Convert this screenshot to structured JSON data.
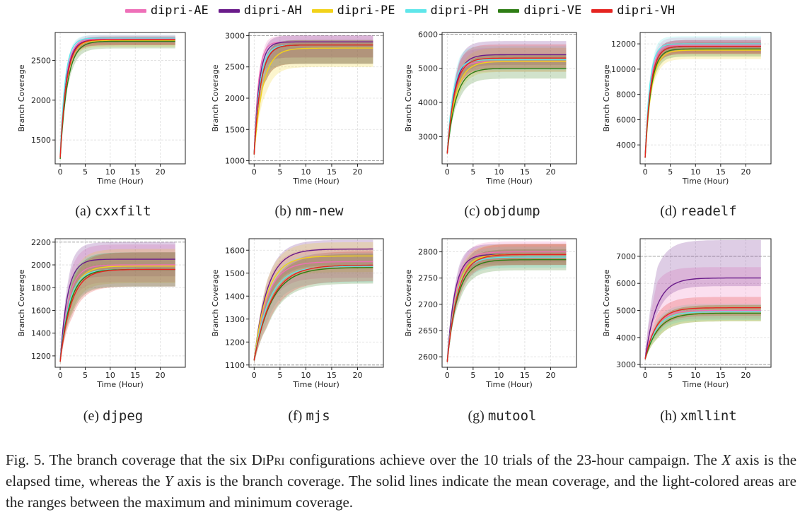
{
  "legend": [
    {
      "label": "dipri-AE",
      "color": "#ee6fb8"
    },
    {
      "label": "dipri-AH",
      "color": "#6a1b8a"
    },
    {
      "label": "dipri-PE",
      "color": "#f2d21a"
    },
    {
      "label": "dipri-PH",
      "color": "#5fe6ea"
    },
    {
      "label": "dipri-VE",
      "color": "#2e7d14"
    },
    {
      "label": "dipri-VH",
      "color": "#e52420"
    }
  ],
  "axis_labels": {
    "x": "Time (Hour)",
    "y": "Branch Coverage"
  },
  "caption": {
    "fig": "Fig. 5.",
    "text1": "The branch coverage that the six",
    "name": "DiPri",
    "text2": "configurations achieve over the 10 trials of the 23-hour campaign. The",
    "x_var": "X",
    "text3": "axis is the elapsed time, whereas the",
    "y_var": "Y",
    "text4": "axis is the branch coverage. The solid lines indicate the mean coverage, and the light-colored areas are the ranges between the maximum and minimum coverage."
  },
  "chart_data": [
    {
      "type": "line",
      "subcaption": "(a)",
      "program": "cxxfilt",
      "xlabel": "Time (Hour)",
      "ylabel": "Branch Coverage",
      "xlim": [
        -1,
        25
      ],
      "ylim": [
        1200,
        2850
      ],
      "xticks": [
        0,
        5,
        10,
        15,
        20
      ],
      "yticks": [
        1500,
        2000,
        2500
      ],
      "hlines": [],
      "series": [
        {
          "name": "dipri-AE",
          "start": 1300,
          "end": 2770,
          "k": 0.9,
          "band_lo": 60,
          "band_hi": 50
        },
        {
          "name": "dipri-AH",
          "start": 1280,
          "end": 2760,
          "k": 0.85,
          "band_lo": 70,
          "band_hi": 40
        },
        {
          "name": "dipri-PE",
          "start": 1290,
          "end": 2750,
          "k": 0.8,
          "band_lo": 80,
          "band_hi": 40
        },
        {
          "name": "dipri-PH",
          "start": 1310,
          "end": 2780,
          "k": 1.0,
          "band_lo": 60,
          "band_hi": 40
        },
        {
          "name": "dipri-VE",
          "start": 1260,
          "end": 2740,
          "k": 0.7,
          "band_lo": 90,
          "band_hi": 40
        },
        {
          "name": "dipri-VH",
          "start": 1280,
          "end": 2760,
          "k": 0.8,
          "band_lo": 70,
          "band_hi": 40
        }
      ]
    },
    {
      "type": "line",
      "subcaption": "(b)",
      "program": "nm-new",
      "xlabel": "Time (Hour)",
      "ylabel": "Branch Coverage",
      "xlim": [
        -1,
        25
      ],
      "ylim": [
        950,
        3050
      ],
      "xticks": [
        0,
        5,
        10,
        15,
        20
      ],
      "yticks": [
        1000,
        1500,
        2000,
        2500,
        3000
      ],
      "hlines": [
        1000,
        3000
      ],
      "series": [
        {
          "name": "dipri-AE",
          "start": 1100,
          "end": 2900,
          "k": 1.2,
          "band_lo": 250,
          "band_hi": 100
        },
        {
          "name": "dipri-AH",
          "start": 1100,
          "end": 2900,
          "k": 1.0,
          "band_lo": 250,
          "band_hi": 100
        },
        {
          "name": "dipri-PE",
          "start": 1100,
          "end": 2800,
          "k": 0.6,
          "band_lo": 300,
          "band_hi": 100
        },
        {
          "name": "dipri-PH",
          "start": 1100,
          "end": 2850,
          "k": 0.9,
          "band_lo": 300,
          "band_hi": 80
        },
        {
          "name": "dipri-VE",
          "start": 1100,
          "end": 2850,
          "k": 0.8,
          "band_lo": 300,
          "band_hi": 80
        },
        {
          "name": "dipri-VH",
          "start": 1100,
          "end": 2850,
          "k": 0.8,
          "band_lo": 300,
          "band_hi": 80
        }
      ]
    },
    {
      "type": "line",
      "subcaption": "(c)",
      "program": "objdump",
      "xlabel": "Time (Hour)",
      "ylabel": "Branch Coverage",
      "xlim": [
        -1,
        25
      ],
      "ylim": [
        2200,
        6050
      ],
      "xticks": [
        0,
        5,
        10,
        15,
        20
      ],
      "yticks": [
        3000,
        4000,
        5000,
        6000
      ],
      "hlines": [
        6000
      ],
      "series": [
        {
          "name": "dipri-AE",
          "start": 2500,
          "end": 5200,
          "k": 0.8,
          "band_lo": 300,
          "band_hi": 400
        },
        {
          "name": "dipri-AH",
          "start": 2500,
          "end": 5400,
          "k": 0.7,
          "band_lo": 300,
          "band_hi": 400
        },
        {
          "name": "dipri-PE",
          "start": 2500,
          "end": 5200,
          "k": 0.6,
          "band_lo": 300,
          "band_hi": 400
        },
        {
          "name": "dipri-PH",
          "start": 2500,
          "end": 5250,
          "k": 0.9,
          "band_lo": 300,
          "band_hi": 400
        },
        {
          "name": "dipri-VE",
          "start": 2500,
          "end": 5000,
          "k": 0.6,
          "band_lo": 300,
          "band_hi": 400
        },
        {
          "name": "dipri-VH",
          "start": 2500,
          "end": 5300,
          "k": 0.7,
          "band_lo": 300,
          "band_hi": 400
        }
      ]
    },
    {
      "type": "line",
      "subcaption": "(d)",
      "program": "readelf",
      "xlabel": "Time (Hour)",
      "ylabel": "Branch Coverage",
      "xlim": [
        -1,
        25
      ],
      "ylim": [
        2500,
        12900
      ],
      "xticks": [
        0,
        5,
        10,
        15,
        20
      ],
      "yticks": [
        4000,
        6000,
        8000,
        10000,
        12000
      ],
      "hlines": [],
      "series": [
        {
          "name": "dipri-AE",
          "start": 3000,
          "end": 11900,
          "k": 1.0,
          "band_lo": 600,
          "band_hi": 600
        },
        {
          "name": "dipri-AH",
          "start": 3000,
          "end": 11800,
          "k": 0.9,
          "band_lo": 600,
          "band_hi": 500
        },
        {
          "name": "dipri-PE",
          "start": 3000,
          "end": 11500,
          "k": 0.8,
          "band_lo": 700,
          "band_hi": 500
        },
        {
          "name": "dipri-PH",
          "start": 3000,
          "end": 12000,
          "k": 1.1,
          "band_lo": 500,
          "band_hi": 600
        },
        {
          "name": "dipri-VE",
          "start": 3000,
          "end": 11600,
          "k": 0.85,
          "band_lo": 600,
          "band_hi": 500
        },
        {
          "name": "dipri-VH",
          "start": 3000,
          "end": 11800,
          "k": 0.9,
          "band_lo": 600,
          "band_hi": 500
        }
      ]
    },
    {
      "type": "line",
      "subcaption": "(e)",
      "program": "djpeg",
      "xlabel": "Time (Hour)",
      "ylabel": "Branch Coverage",
      "xlim": [
        -1,
        25
      ],
      "ylim": [
        1100,
        2230
      ],
      "xticks": [
        0,
        5,
        10,
        15,
        20
      ],
      "yticks": [
        1200,
        1400,
        1600,
        1800,
        2000,
        2200
      ],
      "hlines": [
        2200
      ],
      "series": [
        {
          "name": "dipri-AE",
          "start": 1150,
          "end": 2000,
          "k": 0.6,
          "band_lo": 150,
          "band_hi": 180
        },
        {
          "name": "dipri-AH",
          "start": 1150,
          "end": 2050,
          "k": 0.7,
          "band_lo": 150,
          "band_hi": 150
        },
        {
          "name": "dipri-PE",
          "start": 1150,
          "end": 1990,
          "k": 0.5,
          "band_lo": 150,
          "band_hi": 150
        },
        {
          "name": "dipri-PH",
          "start": 1150,
          "end": 1960,
          "k": 0.55,
          "band_lo": 150,
          "band_hi": 150
        },
        {
          "name": "dipri-VE",
          "start": 1150,
          "end": 1960,
          "k": 0.5,
          "band_lo": 150,
          "band_hi": 150
        },
        {
          "name": "dipri-VH",
          "start": 1150,
          "end": 1960,
          "k": 0.45,
          "band_lo": 150,
          "band_hi": 150
        }
      ]
    },
    {
      "type": "line",
      "subcaption": "(f)",
      "program": "mjs",
      "xlabel": "Time (Hour)",
      "ylabel": "Branch Coverage",
      "xlim": [
        -1,
        25
      ],
      "ylim": [
        1090,
        1650
      ],
      "xticks": [
        0,
        5,
        10,
        15,
        20
      ],
      "yticks": [
        1100,
        1200,
        1300,
        1400,
        1500,
        1600
      ],
      "hlines": [
        1100
      ],
      "series": [
        {
          "name": "dipri-AE",
          "start": 1120,
          "end": 1550,
          "k": 0.4,
          "band_lo": 70,
          "band_hi": 60
        },
        {
          "name": "dipri-AH",
          "start": 1120,
          "end": 1605,
          "k": 0.4,
          "band_lo": 70,
          "band_hi": 40
        },
        {
          "name": "dipri-PE",
          "start": 1120,
          "end": 1575,
          "k": 0.4,
          "band_lo": 70,
          "band_hi": 60
        },
        {
          "name": "dipri-PH",
          "start": 1120,
          "end": 1530,
          "k": 0.35,
          "band_lo": 70,
          "band_hi": 60
        },
        {
          "name": "dipri-VE",
          "start": 1120,
          "end": 1525,
          "k": 0.3,
          "band_lo": 70,
          "band_hi": 60
        },
        {
          "name": "dipri-VH",
          "start": 1120,
          "end": 1535,
          "k": 0.3,
          "band_lo": 70,
          "band_hi": 60
        }
      ]
    },
    {
      "type": "line",
      "subcaption": "(g)",
      "program": "mutool",
      "xlabel": "Time (Hour)",
      "ylabel": "Branch Coverage",
      "xlim": [
        -1,
        25
      ],
      "ylim": [
        2580,
        2825
      ],
      "xticks": [
        0,
        5,
        10,
        15,
        20
      ],
      "yticks": [
        2600,
        2650,
        2700,
        2750,
        2800
      ],
      "hlines": [],
      "series": [
        {
          "name": "dipri-AE",
          "start": 2590,
          "end": 2800,
          "k": 0.6,
          "band_lo": 20,
          "band_hi": 20
        },
        {
          "name": "dipri-AH",
          "start": 2590,
          "end": 2795,
          "k": 0.7,
          "band_lo": 20,
          "band_hi": 20
        },
        {
          "name": "dipri-PE",
          "start": 2590,
          "end": 2795,
          "k": 0.55,
          "band_lo": 20,
          "band_hi": 20
        },
        {
          "name": "dipri-PH",
          "start": 2590,
          "end": 2790,
          "k": 0.55,
          "band_lo": 20,
          "band_hi": 20
        },
        {
          "name": "dipri-VE",
          "start": 2590,
          "end": 2785,
          "k": 0.5,
          "band_lo": 20,
          "band_hi": 20
        },
        {
          "name": "dipri-VH",
          "start": 2590,
          "end": 2795,
          "k": 0.5,
          "band_lo": 20,
          "band_hi": 20
        }
      ]
    },
    {
      "type": "line",
      "subcaption": "(h)",
      "program": "xmllint",
      "xlabel": "Time (Hour)",
      "ylabel": "Branch Coverage",
      "xlim": [
        -1,
        25
      ],
      "ylim": [
        2900,
        7650
      ],
      "xticks": [
        0,
        5,
        10,
        15,
        20
      ],
      "yticks": [
        3000,
        4000,
        5000,
        6000,
        7000
      ],
      "hlines": [
        3000,
        7000
      ],
      "series": [
        {
          "name": "dipri-AE",
          "start": 3200,
          "end": 5000,
          "k": 0.5,
          "band_lo": 300,
          "band_hi": 1600
        },
        {
          "name": "dipri-AH",
          "start": 3200,
          "end": 6200,
          "k": 0.45,
          "band_lo": 300,
          "band_hi": 1400
        },
        {
          "name": "dipri-PE",
          "start": 3200,
          "end": 4900,
          "k": 0.4,
          "band_lo": 300,
          "band_hi": 300
        },
        {
          "name": "dipri-PH",
          "start": 3200,
          "end": 4950,
          "k": 0.45,
          "band_lo": 300,
          "band_hi": 300
        },
        {
          "name": "dipri-VE",
          "start": 3200,
          "end": 4900,
          "k": 0.4,
          "band_lo": 300,
          "band_hi": 300
        },
        {
          "name": "dipri-VH",
          "start": 3200,
          "end": 5100,
          "k": 0.45,
          "band_lo": 300,
          "band_hi": 400
        }
      ]
    }
  ]
}
